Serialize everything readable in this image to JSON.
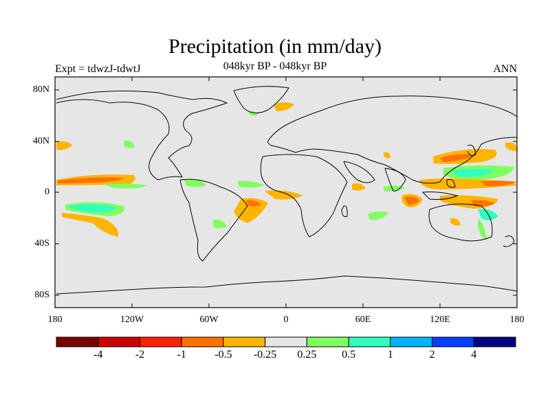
{
  "title": "Precipitation (in mm/day)",
  "subtitle_left": "Expt = tdwzJ-tdwtJ",
  "subtitle_center": "048kyr BP - 048kyr BP",
  "subtitle_right": "ANN",
  "lat_labels": [
    "80N",
    "40N",
    "0",
    "40S",
    "80S"
  ],
  "lon_labels": [
    "180",
    "120W",
    "60W",
    "0",
    "60E",
    "120E",
    "180"
  ],
  "colorbar": {
    "colors": [
      "#7a0000",
      "#cc0000",
      "#ff2000",
      "#ff7000",
      "#ffb400",
      "#e6e6e6",
      "#80ff60",
      "#30ffc0",
      "#00b4ff",
      "#0040ff",
      "#000080"
    ],
    "labels": [
      "-4",
      "-2",
      "-1",
      "-0.5",
      "-0.25",
      "0.25",
      "0.5",
      "1",
      "2",
      "4"
    ]
  },
  "land_color": "#e6e6e6"
}
